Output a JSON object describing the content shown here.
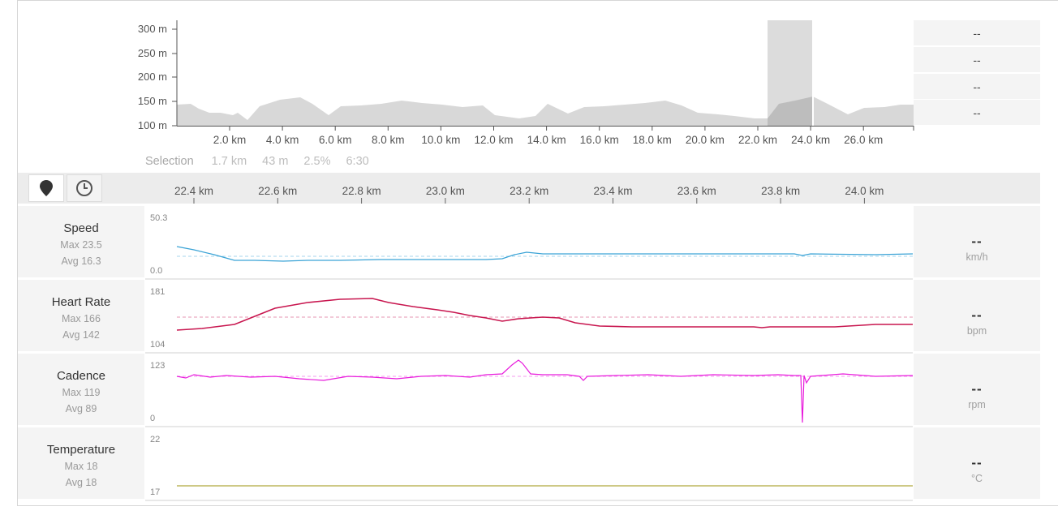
{
  "elevation": {
    "y_ticks": [
      "300 m",
      "250 m",
      "200 m",
      "150 m",
      "100 m"
    ],
    "x_ticks": [
      "2.0 km",
      "4.0 km",
      "6.0 km",
      "8.0 km",
      "10.0 km",
      "12.0 km",
      "14.0 km",
      "16.0 km",
      "18.0 km",
      "20.0 km",
      "22.0 km",
      "24.0 km",
      "26.0 km"
    ],
    "fill_color": "#d8d8d8",
    "selection_fill_color": "#bdbdbd",
    "selection_band_color": "#dcdcdc"
  },
  "stats_boxes": [
    "--",
    "--",
    "--",
    "--"
  ],
  "selection": {
    "label": "Selection",
    "distance": "1.7 km",
    "elevation_gain": "43 m",
    "grade": "2.5%",
    "duration": "6:30"
  },
  "toolbar": {
    "map_button_icon": "map-pin-icon",
    "time_button_icon": "clock-icon"
  },
  "zoom_axis": {
    "ticks": [
      "22.4 km",
      "22.6 km",
      "22.8 km",
      "23.0 km",
      "23.2 km",
      "23.4 km",
      "23.6 km",
      "23.8 km",
      "24.0 km"
    ]
  },
  "metrics": [
    {
      "name": "Speed",
      "max": "Max 23.5",
      "avg": "Avg 16.3",
      "ymax": "50.3",
      "ymin": "0.0",
      "value": "--",
      "unit": "km/h",
      "color": "#3aa3d6"
    },
    {
      "name": "Heart Rate",
      "max": "Max 166",
      "avg": "Avg 142",
      "ymax": "181",
      "ymin": "104",
      "value": "--",
      "unit": "bpm",
      "color": "#c8164f"
    },
    {
      "name": "Cadence",
      "max": "Max 119",
      "avg": "Avg 89",
      "ymax": "123",
      "ymin": "0",
      "value": "--",
      "unit": "rpm",
      "color": "#e81cdc"
    },
    {
      "name": "Temperature",
      "max": "Max 18",
      "avg": "Avg 18",
      "ymax": "22",
      "ymin": "17",
      "value": "--",
      "unit": "°C",
      "color": "#b0a93e"
    }
  ]
}
